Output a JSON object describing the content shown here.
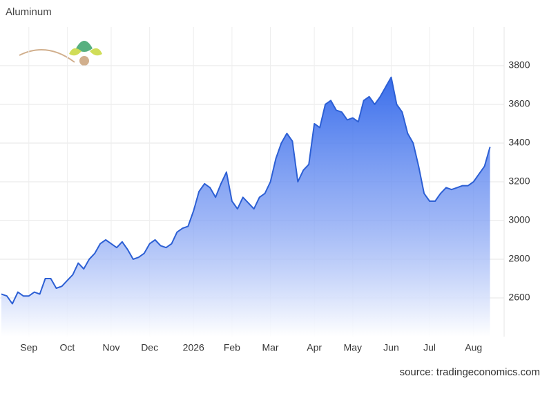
{
  "chart_data": {
    "type": "area",
    "title": "Aluminum",
    "source": "source: tradingeconomics.com",
    "categories": [
      null,
      null,
      null,
      null,
      null,
      "Sep",
      null,
      null,
      null,
      null,
      null,
      null,
      "Oct",
      null,
      null,
      null,
      null,
      null,
      null,
      null,
      "Nov",
      null,
      null,
      null,
      null,
      null,
      null,
      "Dec",
      null,
      null,
      null,
      null,
      null,
      null,
      null,
      "2026",
      null,
      null,
      null,
      null,
      null,
      null,
      "Feb",
      null,
      null,
      null,
      null,
      null,
      null,
      "Mar",
      null,
      null,
      null,
      null,
      null,
      null,
      null,
      "Apr",
      null,
      null,
      null,
      null,
      null,
      null,
      "May",
      null,
      null,
      null,
      null,
      null,
      null,
      "Jun",
      null,
      null,
      null,
      null,
      null,
      null,
      "Jul",
      null,
      null,
      null,
      null,
      null,
      null,
      null,
      "Aug",
      null,
      null,
      null
    ],
    "values": [
      2620,
      2610,
      2570,
      2630,
      2610,
      2610,
      2630,
      2620,
      2700,
      2700,
      2650,
      2660,
      2690,
      2720,
      2780,
      2750,
      2800,
      2830,
      2880,
      2900,
      2880,
      2860,
      2890,
      2850,
      2800,
      2810,
      2830,
      2880,
      2900,
      2870,
      2860,
      2880,
      2940,
      2960,
      2970,
      3050,
      3150,
      3190,
      3170,
      3120,
      3190,
      3250,
      3100,
      3060,
      3120,
      3090,
      3060,
      3120,
      3140,
      3200,
      3320,
      3400,
      3450,
      3410,
      3200,
      3260,
      3290,
      3500,
      3480,
      3600,
      3620,
      3570,
      3560,
      3520,
      3530,
      3510,
      3620,
      3640,
      3600,
      3640,
      3690,
      3740,
      3600,
      3560,
      3450,
      3400,
      3280,
      3140,
      3100,
      3100,
      3140,
      3170,
      3160,
      3170,
      3180,
      3180,
      3200,
      3240,
      3280,
      3380
    ],
    "color": "#2c5fd4",
    "ylim": [
      2400,
      4000
    ],
    "yticks": [
      2600,
      2800,
      3000,
      3200,
      3400,
      3600,
      3800
    ],
    "grid": true
  }
}
